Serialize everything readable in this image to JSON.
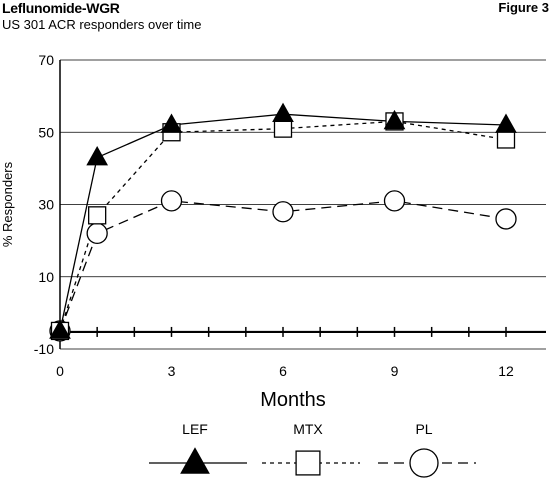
{
  "header": {
    "title": "Leflunomide-WGR",
    "subtitle": "US 301 ACR responders over time",
    "figure_label": "Figure 3"
  },
  "chart_data": {
    "type": "line",
    "xlabel": "Months",
    "ylabel": "% Responders",
    "x_ticks": [
      0,
      3,
      6,
      9,
      12
    ],
    "y_ticks": [
      -10,
      10,
      30,
      50,
      70
    ],
    "xlim": [
      0,
      12
    ],
    "ylim": [
      -10,
      70
    ],
    "grid": "horizontal",
    "legend_position": "bottom",
    "series": [
      {
        "name": "LEF",
        "marker": "triangle",
        "line": "solid",
        "x": [
          0,
          1,
          3,
          6,
          9,
          12
        ],
        "y": [
          -5,
          43,
          52,
          55,
          53,
          52
        ]
      },
      {
        "name": "MTX",
        "marker": "square",
        "line": "short-dash",
        "x": [
          0,
          1,
          3,
          6,
          9,
          12
        ],
        "y": [
          -5,
          27,
          50,
          51,
          53,
          48
        ]
      },
      {
        "name": "PL",
        "marker": "circle",
        "line": "long-dash",
        "x": [
          0,
          1,
          3,
          6,
          9,
          12
        ],
        "y": [
          -5,
          22,
          31,
          28,
          31,
          26
        ]
      }
    ]
  }
}
